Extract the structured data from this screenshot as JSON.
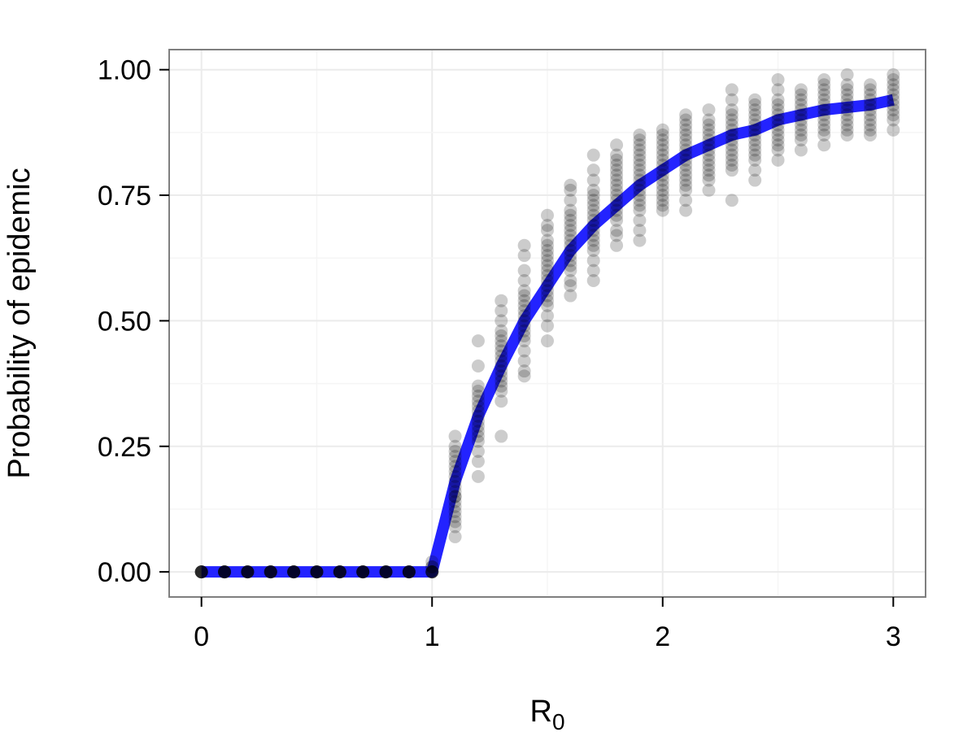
{
  "chart_data": {
    "type": "scatter",
    "title": "",
    "xlabel": "R",
    "xlabel_subscript": "0",
    "ylabel": "Probability of epidemic",
    "xlim": [
      -0.14,
      3.14
    ],
    "ylim": [
      -0.05,
      1.04
    ],
    "x_ticks": [
      0,
      1,
      2,
      3
    ],
    "x_tick_labels": [
      "0",
      "1",
      "2",
      "3"
    ],
    "y_ticks": [
      0,
      0.25,
      0.5,
      0.75,
      1.0
    ],
    "y_tick_labels": [
      "0.00",
      "0.25",
      "0.50",
      "0.75",
      "1.00"
    ],
    "grid": true,
    "legend": "none",
    "colors": {
      "points": "#000000",
      "curve": "#2323ff",
      "panel_border": "#7f7f7f",
      "grid": "#ebebeb"
    },
    "series": [
      {
        "kind": "points",
        "opacity": 0.2,
        "groups": [
          {
            "x": 0.0,
            "y": [
              0,
              0,
              0,
              0,
              0,
              0,
              0,
              0
            ]
          },
          {
            "x": 0.1,
            "y": [
              0,
              0,
              0,
              0,
              0,
              0,
              0,
              0
            ]
          },
          {
            "x": 0.2,
            "y": [
              0,
              0,
              0,
              0,
              0,
              0,
              0,
              0
            ]
          },
          {
            "x": 0.3,
            "y": [
              0,
              0,
              0,
              0,
              0,
              0,
              0,
              0
            ]
          },
          {
            "x": 0.4,
            "y": [
              0,
              0,
              0,
              0,
              0,
              0,
              0,
              0
            ]
          },
          {
            "x": 0.5,
            "y": [
              0,
              0,
              0,
              0,
              0,
              0,
              0,
              0
            ]
          },
          {
            "x": 0.6,
            "y": [
              0,
              0,
              0,
              0,
              0,
              0,
              0,
              0
            ]
          },
          {
            "x": 0.7,
            "y": [
              0,
              0,
              0,
              0,
              0,
              0,
              0,
              0
            ]
          },
          {
            "x": 0.8,
            "y": [
              0,
              0,
              0,
              0,
              0,
              0,
              0,
              0
            ]
          },
          {
            "x": 0.9,
            "y": [
              0,
              0,
              0,
              0,
              0,
              0,
              0,
              0
            ]
          },
          {
            "x": 1.0,
            "y": [
              0,
              0,
              0,
              0,
              0,
              0,
              0.01,
              0.01,
              0.02
            ]
          },
          {
            "x": 1.1,
            "y": [
              0.07,
              0.09,
              0.1,
              0.11,
              0.12,
              0.13,
              0.14,
              0.15,
              0.15,
              0.16,
              0.17,
              0.18,
              0.19,
              0.2,
              0.21,
              0.22,
              0.23,
              0.24,
              0.25,
              0.27
            ]
          },
          {
            "x": 1.2,
            "y": [
              0.19,
              0.22,
              0.24,
              0.26,
              0.27,
              0.28,
              0.29,
              0.3,
              0.31,
              0.32,
              0.33,
              0.34,
              0.35,
              0.36,
              0.37,
              0.41,
              0.46
            ]
          },
          {
            "x": 1.3,
            "y": [
              0.27,
              0.34,
              0.36,
              0.37,
              0.38,
              0.39,
              0.4,
              0.41,
              0.42,
              0.43,
              0.44,
              0.45,
              0.46,
              0.47,
              0.48,
              0.5,
              0.52,
              0.54
            ]
          },
          {
            "x": 1.4,
            "y": [
              0.39,
              0.4,
              0.42,
              0.44,
              0.46,
              0.47,
              0.48,
              0.49,
              0.5,
              0.51,
              0.52,
              0.53,
              0.54,
              0.55,
              0.56,
              0.58,
              0.6,
              0.63,
              0.65
            ]
          },
          {
            "x": 1.5,
            "y": [
              0.46,
              0.49,
              0.51,
              0.53,
              0.54,
              0.55,
              0.56,
              0.57,
              0.58,
              0.59,
              0.6,
              0.61,
              0.62,
              0.63,
              0.64,
              0.65,
              0.66,
              0.68,
              0.69,
              0.71
            ]
          },
          {
            "x": 1.6,
            "y": [
              0.55,
              0.57,
              0.58,
              0.6,
              0.61,
              0.62,
              0.63,
              0.64,
              0.65,
              0.66,
              0.67,
              0.68,
              0.69,
              0.7,
              0.71,
              0.72,
              0.74,
              0.76,
              0.77
            ]
          },
          {
            "x": 1.7,
            "y": [
              0.58,
              0.6,
              0.62,
              0.64,
              0.65,
              0.66,
              0.67,
              0.68,
              0.69,
              0.7,
              0.71,
              0.72,
              0.73,
              0.74,
              0.75,
              0.76,
              0.78,
              0.8,
              0.83
            ]
          },
          {
            "x": 1.8,
            "y": [
              0.65,
              0.67,
              0.68,
              0.7,
              0.71,
              0.72,
              0.73,
              0.74,
              0.75,
              0.76,
              0.77,
              0.78,
              0.79,
              0.8,
              0.81,
              0.82,
              0.83,
              0.85
            ]
          },
          {
            "x": 1.9,
            "y": [
              0.66,
              0.68,
              0.7,
              0.72,
              0.73,
              0.74,
              0.75,
              0.76,
              0.77,
              0.78,
              0.79,
              0.8,
              0.81,
              0.82,
              0.83,
              0.84,
              0.85,
              0.86,
              0.87
            ]
          },
          {
            "x": 2.0,
            "y": [
              0.72,
              0.73,
              0.74,
              0.75,
              0.76,
              0.77,
              0.78,
              0.79,
              0.8,
              0.81,
              0.82,
              0.83,
              0.84,
              0.85,
              0.86,
              0.87,
              0.88
            ]
          },
          {
            "x": 2.1,
            "y": [
              0.72,
              0.74,
              0.76,
              0.77,
              0.78,
              0.79,
              0.8,
              0.81,
              0.82,
              0.83,
              0.84,
              0.85,
              0.86,
              0.87,
              0.88,
              0.89,
              0.9,
              0.91
            ]
          },
          {
            "x": 2.2,
            "y": [
              0.76,
              0.78,
              0.79,
              0.8,
              0.81,
              0.82,
              0.83,
              0.84,
              0.85,
              0.86,
              0.87,
              0.88,
              0.89,
              0.9,
              0.92
            ]
          },
          {
            "x": 2.3,
            "y": [
              0.74,
              0.8,
              0.81,
              0.82,
              0.83,
              0.84,
              0.85,
              0.86,
              0.87,
              0.88,
              0.89,
              0.9,
              0.91,
              0.92,
              0.94,
              0.96
            ]
          },
          {
            "x": 2.4,
            "y": [
              0.78,
              0.8,
              0.82,
              0.83,
              0.84,
              0.85,
              0.86,
              0.87,
              0.88,
              0.89,
              0.9,
              0.91,
              0.92,
              0.93,
              0.94
            ]
          },
          {
            "x": 2.5,
            "y": [
              0.82,
              0.84,
              0.85,
              0.86,
              0.87,
              0.88,
              0.89,
              0.9,
              0.91,
              0.92,
              0.93,
              0.94,
              0.96,
              0.98
            ]
          },
          {
            "x": 2.6,
            "y": [
              0.84,
              0.86,
              0.87,
              0.88,
              0.89,
              0.9,
              0.91,
              0.92,
              0.93,
              0.94,
              0.95,
              0.96
            ]
          },
          {
            "x": 2.7,
            "y": [
              0.85,
              0.87,
              0.88,
              0.89,
              0.9,
              0.91,
              0.92,
              0.93,
              0.94,
              0.95,
              0.96,
              0.97,
              0.98
            ]
          },
          {
            "x": 2.8,
            "y": [
              0.87,
              0.88,
              0.89,
              0.9,
              0.91,
              0.92,
              0.93,
              0.94,
              0.95,
              0.96,
              0.97,
              0.99
            ]
          },
          {
            "x": 2.9,
            "y": [
              0.87,
              0.88,
              0.89,
              0.9,
              0.91,
              0.92,
              0.93,
              0.94,
              0.95,
              0.96,
              0.97
            ]
          },
          {
            "x": 3.0,
            "y": [
              0.88,
              0.9,
              0.91,
              0.92,
              0.93,
              0.94,
              0.95,
              0.96,
              0.97,
              0.98,
              0.99
            ]
          }
        ]
      },
      {
        "kind": "curve",
        "x": [
          0,
          1.0,
          1.1,
          1.2,
          1.3,
          1.4,
          1.5,
          1.6,
          1.7,
          1.8,
          1.9,
          2.0,
          2.1,
          2.2,
          2.3,
          2.4,
          2.5,
          2.6,
          2.7,
          2.8,
          2.9,
          3.0
        ],
        "y": [
          0,
          0,
          0.18,
          0.31,
          0.41,
          0.5,
          0.57,
          0.64,
          0.69,
          0.73,
          0.77,
          0.8,
          0.83,
          0.85,
          0.87,
          0.88,
          0.9,
          0.91,
          0.92,
          0.925,
          0.93,
          0.94
        ]
      }
    ]
  }
}
